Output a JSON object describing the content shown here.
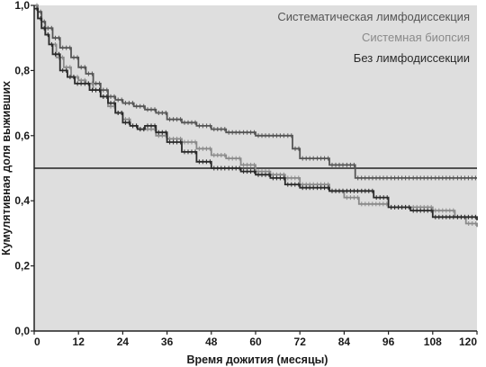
{
  "chart_data": {
    "type": "line",
    "step": true,
    "title": "",
    "xlabel": "Время дожития (месяцы)",
    "ylabel": "Кумулятивная доля выживших",
    "xlim": [
      0,
      120
    ],
    "ylim": [
      0,
      1.0
    ],
    "x_ticks": [
      "0",
      "12",
      "24",
      "36",
      "48",
      "60",
      "72",
      "84",
      "96",
      "108",
      "120"
    ],
    "y_ticks": [
      "0,0",
      "0,2",
      "0,4",
      "0,6",
      "0,8",
      "1,0"
    ],
    "grid": false,
    "legend_position": "top-right",
    "reference_line": {
      "y": 0.5
    },
    "colors": {
      "plot_background": "#dedede",
      "axis": "#222222",
      "reference_line": "#222222"
    },
    "series": [
      {
        "name": "Систематическая лимфодиссекция",
        "color": "#555555",
        "x": [
          0,
          1,
          2,
          3,
          5,
          7,
          10,
          12,
          14,
          16,
          18,
          20,
          22,
          24,
          27,
          30,
          33,
          36,
          40,
          44,
          46,
          48,
          52,
          56,
          60,
          64,
          68,
          70,
          72,
          76,
          80,
          84,
          87,
          90,
          96,
          102,
          108,
          114,
          120
        ],
        "y": [
          1.0,
          0.98,
          0.95,
          0.93,
          0.9,
          0.87,
          0.84,
          0.81,
          0.79,
          0.76,
          0.74,
          0.72,
          0.71,
          0.7,
          0.69,
          0.68,
          0.67,
          0.65,
          0.64,
          0.63,
          0.63,
          0.62,
          0.61,
          0.61,
          0.6,
          0.6,
          0.6,
          0.56,
          0.53,
          0.53,
          0.51,
          0.51,
          0.47,
          0.47,
          0.47,
          0.47,
          0.47,
          0.47,
          0.47
        ]
      },
      {
        "name": "Системная биопсия",
        "color": "#8a8a8a",
        "x": [
          0,
          1,
          2,
          3,
          4,
          6,
          8,
          10,
          12,
          14,
          16,
          18,
          20,
          22,
          24,
          26,
          28,
          30,
          33,
          36,
          40,
          44,
          48,
          52,
          56,
          60,
          64,
          68,
          72,
          76,
          80,
          84,
          88,
          96,
          102,
          108,
          114,
          117,
          120
        ],
        "y": [
          1.0,
          0.96,
          0.93,
          0.91,
          0.88,
          0.84,
          0.81,
          0.78,
          0.77,
          0.76,
          0.74,
          0.72,
          0.69,
          0.67,
          0.65,
          0.63,
          0.62,
          0.62,
          0.6,
          0.59,
          0.58,
          0.56,
          0.54,
          0.53,
          0.51,
          0.49,
          0.48,
          0.47,
          0.45,
          0.45,
          0.43,
          0.41,
          0.39,
          0.38,
          0.38,
          0.37,
          0.35,
          0.33,
          0.32
        ]
      },
      {
        "name": "Без лимфодиссекции",
        "color": "#2a2a2a",
        "x": [
          0,
          1,
          2,
          3,
          4,
          5,
          7,
          9,
          11,
          13,
          15,
          18,
          20,
          22,
          24,
          26,
          28,
          30,
          33,
          36,
          40,
          44,
          48,
          52,
          56,
          60,
          64,
          68,
          72,
          76,
          80,
          84,
          88,
          92,
          96,
          102,
          108,
          114,
          120
        ],
        "y": [
          0.99,
          0.96,
          0.93,
          0.91,
          0.88,
          0.85,
          0.8,
          0.78,
          0.76,
          0.76,
          0.74,
          0.72,
          0.7,
          0.67,
          0.64,
          0.63,
          0.62,
          0.63,
          0.61,
          0.58,
          0.55,
          0.52,
          0.5,
          0.5,
          0.49,
          0.48,
          0.47,
          0.45,
          0.44,
          0.44,
          0.43,
          0.43,
          0.43,
          0.41,
          0.38,
          0.37,
          0.35,
          0.35,
          0.34
        ]
      }
    ]
  }
}
